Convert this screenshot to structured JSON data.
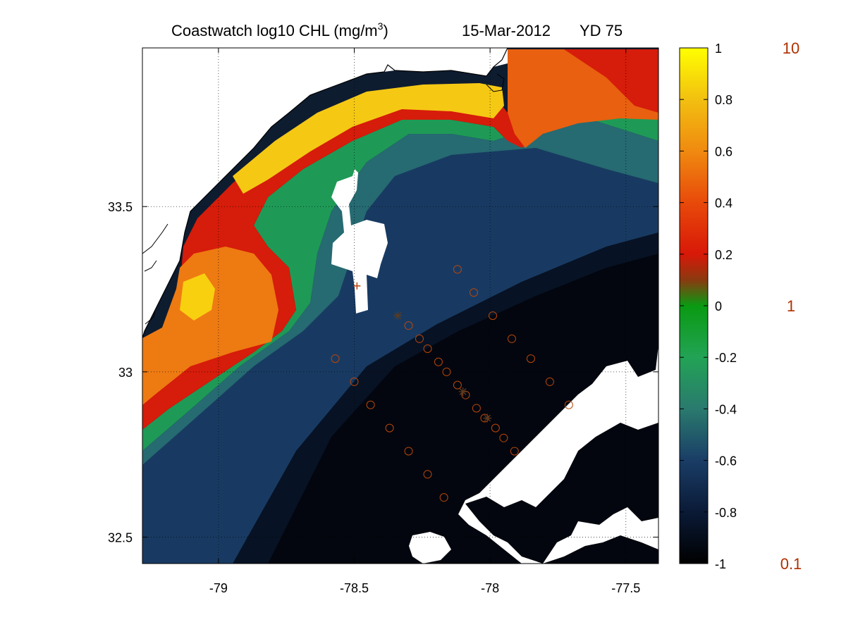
{
  "chart_data": {
    "type": "heatmap",
    "title": {
      "left": "Coastwatch  log10  CHL (mg/m",
      "superscript": "3",
      "close": ")",
      "date": "15-Mar-2012",
      "yearday": "YD 75"
    },
    "xlim": [
      -79.28,
      -77.38
    ],
    "ylim": [
      32.42,
      33.98
    ],
    "x_ticks": [
      -79,
      -78.5,
      -78,
      -77.5
    ],
    "x_tick_labels": [
      "-79",
      "-78.5",
      "-78",
      "-77.5"
    ],
    "y_ticks": [
      32.5,
      33,
      33.5
    ],
    "y_tick_labels": [
      "32.5",
      "33",
      "33.5"
    ],
    "grid": "dotted",
    "colorbar": {
      "range": [
        -1,
        1
      ],
      "ticks": [
        1,
        0.8,
        0.6,
        0.4,
        0.2,
        0,
        -0.2,
        -0.4,
        -0.6,
        -0.8,
        -1
      ],
      "tick_labels": [
        "1",
        "0.8",
        "0.6",
        "0.4",
        "0.2",
        "0",
        "-0.2",
        "-0.4",
        "-0.6",
        "-0.8",
        "-1"
      ],
      "stops": [
        {
          "v": -1.0,
          "color": "#000000"
        },
        {
          "v": -0.8,
          "color": "#0a1a36"
        },
        {
          "v": -0.6,
          "color": "#1a3d66"
        },
        {
          "v": -0.4,
          "color": "#2a7a6e"
        },
        {
          "v": -0.2,
          "color": "#22a355"
        },
        {
          "v": 0.0,
          "color": "#0a9a12"
        },
        {
          "v": 0.1,
          "color": "#8a3a10"
        },
        {
          "v": 0.2,
          "color": "#d81808"
        },
        {
          "v": 0.4,
          "color": "#e84a0a"
        },
        {
          "v": 0.6,
          "color": "#f08a10"
        },
        {
          "v": 0.8,
          "color": "#f2c010"
        },
        {
          "v": 1.0,
          "color": "#ffff00"
        }
      ],
      "alt_labels": [
        {
          "text": "10",
          "v": 1
        },
        {
          "text": "1",
          "v": 0
        },
        {
          "text": "0.1",
          "v": -1
        }
      ],
      "alt_label_color": "#b03000"
    },
    "stations_circles": [
      {
        "lon": -78.12,
        "lat": 33.31
      },
      {
        "lon": -78.06,
        "lat": 33.24
      },
      {
        "lon": -77.99,
        "lat": 33.17
      },
      {
        "lon": -77.92,
        "lat": 33.1
      },
      {
        "lon": -77.85,
        "lat": 33.04
      },
      {
        "lon": -77.78,
        "lat": 32.97
      },
      {
        "lon": -77.71,
        "lat": 32.9
      },
      {
        "lon": -78.3,
        "lat": 33.14
      },
      {
        "lon": -78.26,
        "lat": 33.1
      },
      {
        "lon": -78.23,
        "lat": 33.07
      },
      {
        "lon": -78.19,
        "lat": 33.03
      },
      {
        "lon": -78.16,
        "lat": 33.0
      },
      {
        "lon": -78.12,
        "lat": 32.96
      },
      {
        "lon": -78.09,
        "lat": 32.93
      },
      {
        "lon": -78.05,
        "lat": 32.89
      },
      {
        "lon": -78.02,
        "lat": 32.86
      },
      {
        "lon": -77.98,
        "lat": 32.83
      },
      {
        "lon": -77.95,
        "lat": 32.8
      },
      {
        "lon": -77.91,
        "lat": 32.76
      },
      {
        "lon": -78.57,
        "lat": 33.04
      },
      {
        "lon": -78.5,
        "lat": 32.97
      },
      {
        "lon": -78.44,
        "lat": 32.9
      },
      {
        "lon": -78.37,
        "lat": 32.83
      },
      {
        "lon": -78.3,
        "lat": 32.76
      },
      {
        "lon": -78.23,
        "lat": 32.69
      },
      {
        "lon": -78.17,
        "lat": 32.62
      }
    ],
    "stations_stars": [
      {
        "lon": -78.34,
        "lat": 33.17
      },
      {
        "lon": -78.1,
        "lat": 32.94
      },
      {
        "lon": -78.01,
        "lat": 32.86
      }
    ],
    "stations_plus": [
      {
        "lon": -78.49,
        "lat": 33.26
      }
    ],
    "marker_color": "#b8460a"
  },
  "colors": {
    "background": "#ffffff",
    "land": "#ffffff",
    "no_data": "#ffffff",
    "coastline": "#000000"
  },
  "icons": {
    "coastline": "coastline-icon"
  }
}
